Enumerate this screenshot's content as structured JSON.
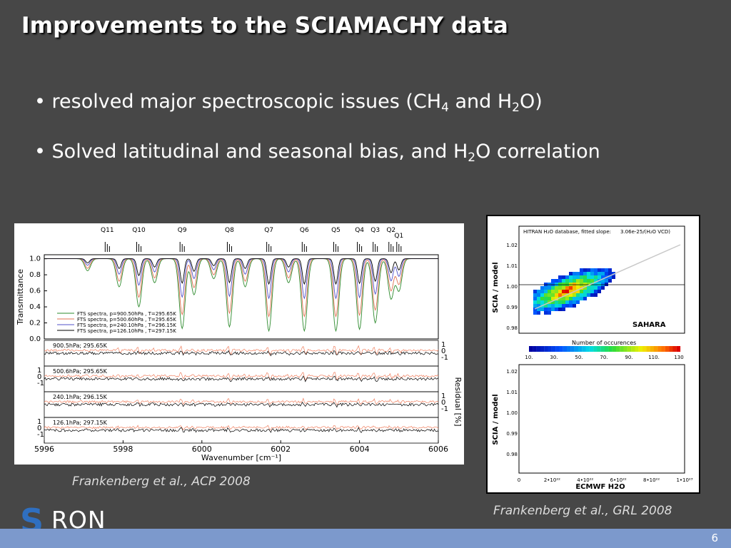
{
  "slide": {
    "title": "Improvements to the SCIAMACHY data",
    "page_number": "6",
    "logo_text": {
      "s": "S",
      "ron": "RON"
    }
  },
  "bullets": [
    {
      "dot": "•",
      "parts": [
        "resolved major spectroscopic issues  (CH",
        "4",
        " and H",
        "2",
        "O)"
      ]
    },
    {
      "dot": "•",
      "parts": [
        "Solved latitudinal and seasonal bias, and H",
        "2",
        "O correlation"
      ]
    }
  ],
  "captions": {
    "left": "Frankenberg et al., ACP 2008",
    "right": "Frankenberg et al., GRL 2008"
  },
  "chart_data": [
    {
      "type": "line",
      "xlabel": "Wavenumber [cm⁻¹]",
      "ylabel_top": "Transmittance",
      "ylabel_bottom": "Residual [%]",
      "xlim": [
        5996,
        6006
      ],
      "x_ticks": [
        "5996",
        "5998",
        "6000",
        "6002",
        "6004",
        "6006"
      ],
      "y_ticks_top": [
        "1.0",
        "0.8",
        "0.6",
        "0.4",
        "0.2",
        "0.0"
      ],
      "residual_ticks": [
        "1",
        "0",
        "-1"
      ],
      "band_labels": [
        "Q11",
        "Q10",
        "Q9",
        "Q8",
        "Q7",
        "Q6",
        "Q5",
        "Q4",
        "Q3",
        "Q2",
        "Q1"
      ],
      "band_positions": [
        5997.6,
        5998.4,
        5999.5,
        6000.7,
        6001.7,
        6002.6,
        6003.4,
        6004.0,
        6004.4,
        6004.8,
        6005.0
      ],
      "absorption_lines": [
        {
          "x": 5997.1,
          "depth": 0.15
        },
        {
          "x": 5997.9,
          "depth": 0.35
        },
        {
          "x": 5998.4,
          "depth": 0.6
        },
        {
          "x": 5998.8,
          "depth": 0.3
        },
        {
          "x": 5999.5,
          "depth": 0.87
        },
        {
          "x": 5999.8,
          "depth": 0.45
        },
        {
          "x": 6000.3,
          "depth": 0.25
        },
        {
          "x": 6000.7,
          "depth": 0.85
        },
        {
          "x": 6001.1,
          "depth": 0.35
        },
        {
          "x": 6001.7,
          "depth": 0.9
        },
        {
          "x": 6002.2,
          "depth": 0.3
        },
        {
          "x": 6002.6,
          "depth": 0.9
        },
        {
          "x": 6003.4,
          "depth": 0.9
        },
        {
          "x": 6004.0,
          "depth": 0.88
        },
        {
          "x": 6004.4,
          "depth": 0.8
        },
        {
          "x": 6004.8,
          "depth": 0.5
        },
        {
          "x": 6005.0,
          "depth": 0.4
        }
      ],
      "legend": [
        "FTS spectra, p=900.50hPa , T=295.65K",
        "FTS spectra, p=500.60hPa , T=295.65K",
        "FTS spectra, p=240.10hPa , T=296.15K",
        "FTS spectra, p=126.10hPa , T=297.15K"
      ],
      "residual_panels": [
        "900.5hPa; 295.65K",
        "500.6hPa; 295.65K",
        "240.1hPa; 296.15K",
        "126.1hPa; 297.15K"
      ],
      "colors": {
        "p900": "#2e8b2e",
        "p500": "#e07050",
        "p240": "#5050c8",
        "p126": "#000000"
      }
    },
    {
      "type": "heatmap",
      "title": "HITRAN H₂O database, fitted slope:",
      "slope_text": "3.06e-25/(H₂O VCD)",
      "ylabel": "SCIA / model",
      "region_label": "SAHARA",
      "y_ticks": [
        "1.02",
        "1.01",
        "1.00",
        "0.99",
        "0.98"
      ],
      "colorbar_title": "Number of occurences",
      "colorbar_ticks": [
        "10.",
        "30.",
        "50.",
        "70.",
        "90.",
        "110.",
        "130"
      ],
      "bottom_ylabel": "SCIA / model",
      "bottom_y_ticks": [
        "1.02",
        "1.01",
        "1.00",
        "0.99",
        "0.98"
      ],
      "x_ticks": [
        "0",
        "2•10²²",
        "4•10²²",
        "6•10²²",
        "8•10²²",
        "1•10²³"
      ],
      "xlabel": "ECMWF H2O",
      "fitted_slope": 3.06e-25
    }
  ]
}
